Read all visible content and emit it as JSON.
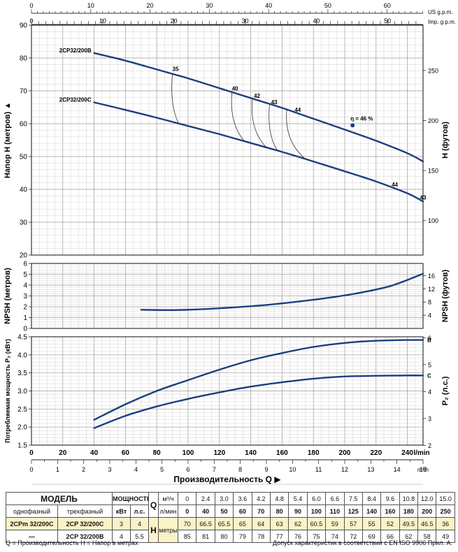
{
  "colors": {
    "curve": "#1a3f7e",
    "grid": "#c8c8c8",
    "gridMajor": "#9a9a9a",
    "highlight": "#fbf3c8"
  },
  "top_axes": {
    "us_label": "US g.p.m.",
    "us_ticks": [
      "0",
      "10",
      "20",
      "30",
      "40",
      "50",
      "60"
    ],
    "us_max": 66,
    "imp_label": "Imp. g.p.m.",
    "imp_ticks": [
      "0",
      "10",
      "20",
      "30",
      "40",
      "50"
    ],
    "imp_max": 55
  },
  "chart_data": [
    {
      "type": "line",
      "panel": "head",
      "ylabel": "Напор H  (метров) ▲",
      "ylabel_right": "H  (футов)",
      "xlim": [
        0,
        250
      ],
      "ylim": [
        20,
        90
      ],
      "yticks": [
        20,
        30,
        40,
        50,
        60,
        70,
        80,
        90
      ],
      "yticks_right": [
        100,
        150,
        200,
        250
      ],
      "series": [
        {
          "name": "2CP32/200B",
          "x": [
            40,
            60,
            80,
            100,
            120,
            140,
            160,
            180,
            200,
            220,
            240,
            250
          ],
          "y": [
            81.5,
            79.2,
            76.5,
            73.8,
            70.8,
            67.8,
            64.8,
            61.5,
            58.2,
            54.8,
            51,
            48.5
          ]
        },
        {
          "name": "2CP32/200C",
          "x": [
            40,
            60,
            80,
            100,
            120,
            140,
            160,
            180,
            200,
            220,
            240,
            250
          ],
          "y": [
            66.5,
            64.2,
            61.8,
            59.3,
            56.8,
            54.1,
            51.4,
            48.5,
            45.5,
            42.4,
            38.8,
            36.3
          ]
        }
      ],
      "efficiency_labels": [
        {
          "text": "35",
          "x": 92,
          "y": 75.4
        },
        {
          "text": "40",
          "x": 130,
          "y": 69.5
        },
        {
          "text": "42",
          "x": 144,
          "y": 67.2
        },
        {
          "text": "43",
          "x": 155,
          "y": 65.3
        },
        {
          "text": "44",
          "x": 170,
          "y": 63.0
        },
        {
          "text": "44",
          "x": 232,
          "y": 40.2
        },
        {
          "text": "43",
          "x": 250,
          "y": 36.3
        }
      ],
      "best_point": {
        "text": "η = 46 %",
        "x": 205,
        "y": 59.5
      }
    },
    {
      "type": "line",
      "panel": "npsh",
      "ylabel": "NPSH  (метров)",
      "ylabel_right": "NPSH  (футов)",
      "xlim": [
        0,
        250
      ],
      "ylim": [
        0,
        6
      ],
      "yticks": [
        0,
        1,
        2,
        3,
        4,
        5,
        6
      ],
      "yticks_right": [
        4,
        8,
        12,
        16
      ],
      "series": [
        {
          "name": "",
          "x": [
            70,
            90,
            110,
            130,
            150,
            170,
            190,
            210,
            230,
            250
          ],
          "y": [
            1.72,
            1.69,
            1.78,
            1.95,
            2.17,
            2.47,
            2.83,
            3.3,
            3.95,
            5.05
          ]
        }
      ]
    },
    {
      "type": "line",
      "panel": "power",
      "ylabel": "Потребляемая мощность  P₂ (кВт)",
      "ylabel_right": "P₂  (л.с.)",
      "xlim": [
        0,
        250
      ],
      "ylim": [
        1.5,
        4.5
      ],
      "yticks": [
        "1.5",
        "2.0",
        "2.5",
        "3.0",
        "3.5",
        "4.0",
        "4.5"
      ],
      "yticks_right": [
        2,
        3,
        4,
        5,
        6
      ],
      "series": [
        {
          "name": "B",
          "x": [
            40,
            60,
            80,
            100,
            120,
            140,
            160,
            180,
            200,
            220,
            240,
            250
          ],
          "y": [
            2.2,
            2.63,
            3.0,
            3.3,
            3.59,
            3.85,
            4.05,
            4.22,
            4.33,
            4.39,
            4.41,
            4.41
          ]
        },
        {
          "name": "C",
          "x": [
            40,
            60,
            80,
            100,
            120,
            140,
            160,
            180,
            200,
            220,
            240,
            250
          ],
          "y": [
            1.97,
            2.31,
            2.57,
            2.78,
            2.96,
            3.12,
            3.24,
            3.34,
            3.4,
            3.42,
            3.43,
            3.43
          ]
        }
      ]
    }
  ],
  "bottom_axes": {
    "lmin_ticks": [
      "0",
      "20",
      "40",
      "60",
      "80",
      "100",
      "120",
      "140",
      "160",
      "180",
      "200",
      "220",
      "240"
    ],
    "lmin_unit": "l/min",
    "m3h_ticks": [
      "0",
      "1",
      "2",
      "3",
      "4",
      "5",
      "6",
      "7",
      "8",
      "9",
      "10",
      "11",
      "12",
      "13",
      "14",
      "15"
    ],
    "m3h_unit": "m³/h",
    "title": "Производительность  Q  ▶"
  },
  "table": {
    "model_header": "МОДЕЛЬ",
    "power_header": "МОЩНОСТЬ",
    "q_label": "Q",
    "single_phase": "однофазный",
    "three_phase": "трехфазный",
    "kw": "кВт",
    "hp": "л.с.",
    "m3h_unit": "м³/ч",
    "lmin_unit": "л/мин",
    "h_label": "H",
    "h_unit": "метры",
    "q_m3h": [
      "0",
      "2.4",
      "3.0",
      "3.6",
      "4.2",
      "4.8",
      "5.4",
      "6.0",
      "6.6",
      "7.5",
      "8.4",
      "9.6",
      "10.8",
      "12.0",
      "15.0"
    ],
    "q_lmin": [
      "0",
      "40",
      "50",
      "60",
      "70",
      "80",
      "90",
      "100",
      "110",
      "125",
      "140",
      "160",
      "180",
      "200",
      "250"
    ],
    "rows": [
      {
        "single": "2CPm 32/200C",
        "three": "2CP 32/200C",
        "kw": "3",
        "hp": "4",
        "h": [
          "70",
          "66.5",
          "65.5",
          "65",
          "64",
          "63",
          "62",
          "60.5",
          "59",
          "57",
          "55",
          "52",
          "49.5",
          "46.5",
          "36"
        ]
      },
      {
        "single": "—",
        "three": "2CP 32/200B",
        "kw": "4",
        "hp": "5.5",
        "h": [
          "85",
          "81",
          "80",
          "79",
          "78",
          "77",
          "76",
          "75",
          "74",
          "72",
          "69",
          "66",
          "62",
          "58",
          "49"
        ]
      }
    ]
  },
  "footnote_left": "Q = Производительность  H = Напор в метрах",
  "footnote_right": "Допуск характеристик в соответствии с EN ISO 9906 Прил. A."
}
